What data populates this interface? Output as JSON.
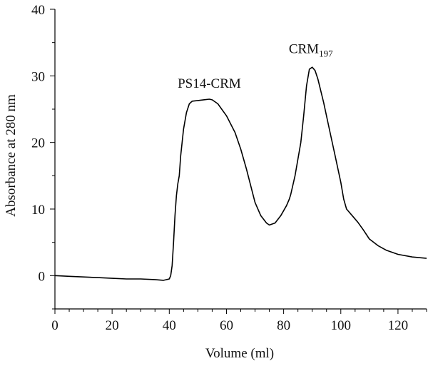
{
  "chart_data": {
    "type": "line",
    "xlabel": "Volume (ml)",
    "ylabel": "Absorbance at 280 nm",
    "xlim": [
      0,
      130
    ],
    "ylim": [
      -5,
      40
    ],
    "x_ticks": [
      0,
      20,
      40,
      60,
      80,
      100,
      120
    ],
    "y_ticks": [
      0,
      10,
      20,
      30,
      40
    ],
    "x_minor_step": 5,
    "y_minor_step": 5,
    "grid": false,
    "line_color": "#000000",
    "annotations": [
      {
        "text": "PS14-CRM",
        "sub": "",
        "x": 54,
        "y": 28.2
      },
      {
        "text": "CRM",
        "sub": "197",
        "x": 89.5,
        "y": 33.4
      }
    ],
    "series": [
      {
        "x": [
          0,
          5,
          10,
          15,
          20,
          25,
          30,
          35,
          38,
          40,
          40.5,
          41,
          41.5,
          42,
          42.5,
          43,
          43.5,
          44,
          45,
          46,
          47,
          48,
          50,
          52,
          54,
          55,
          57,
          60,
          63,
          65,
          67,
          70,
          72,
          74,
          75,
          77,
          79,
          81,
          82,
          82.5,
          84,
          86,
          87,
          88,
          89,
          90,
          91,
          92,
          94,
          96,
          98,
          100,
          101,
          102,
          104,
          106,
          108,
          110,
          113,
          116,
          120,
          125,
          130
        ],
        "y": [
          0,
          -0.1,
          -0.2,
          -0.3,
          -0.4,
          -0.5,
          -0.5,
          -0.6,
          -0.7,
          -0.5,
          0,
          1.5,
          5,
          9,
          12,
          13.8,
          15,
          18,
          22,
          24.5,
          25.8,
          26.2,
          26.3,
          26.4,
          26.5,
          26.4,
          25.8,
          24,
          21.5,
          19,
          16,
          11,
          9,
          7.9,
          7.6,
          7.9,
          9,
          10.5,
          11.5,
          12.2,
          15,
          20,
          24,
          28.5,
          31,
          31.3,
          30.8,
          29.5,
          26,
          22,
          18,
          14,
          11.5,
          10,
          9,
          8,
          6.8,
          5.5,
          4.5,
          3.8,
          3.2,
          2.8,
          2.6
        ]
      }
    ]
  }
}
